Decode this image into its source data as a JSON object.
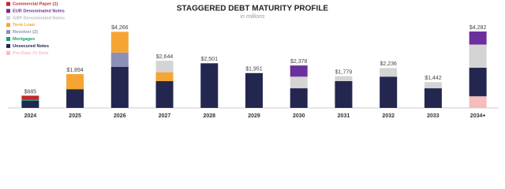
{
  "chart_data": {
    "type": "stacked-bar",
    "title": "STAGGERED DEBT MATURITY PROFILE",
    "subtitle": "in millions",
    "categories": [
      "2024",
      "2025",
      "2026",
      "2027",
      "2028",
      "2029",
      "2030",
      "2031",
      "2032",
      "2033",
      "2034+"
    ],
    "series": [
      {
        "name": "Pro Rata JV Debt",
        "color": "#f7bcbc",
        "values": [
          null,
          null,
          null,
          null,
          null,
          null,
          null,
          null,
          null,
          null,
          650
        ]
      },
      {
        "name": "Unsecured Notes",
        "color": "#23264f",
        "values": [
          400,
          1050,
          2300,
          1500,
          2501,
          1951,
          1100,
          1500,
          1750,
          1100,
          1600
        ]
      },
      {
        "name": "Mortgages",
        "color": "#1a9e6a",
        "values": [
          50,
          null,
          null,
          null,
          null,
          null,
          null,
          null,
          null,
          null,
          null
        ]
      },
      {
        "name": "Revolver (2)",
        "color": "#8c90b6",
        "values": [
          null,
          null,
          800,
          null,
          null,
          null,
          null,
          null,
          null,
          null,
          null
        ]
      },
      {
        "name": "Term Loan",
        "color": "#f5a533",
        "values": [
          null,
          844,
          1166,
          500,
          null,
          null,
          null,
          null,
          null,
          null,
          null
        ]
      },
      {
        "name": "GBP Denominated Notes",
        "color": "#d4d4d4",
        "values": [
          null,
          null,
          null,
          644,
          null,
          null,
          650,
          279,
          486,
          342,
          1300
        ]
      },
      {
        "name": "EUR Denominated Notes",
        "color": "#6c2f9e",
        "values": [
          null,
          null,
          null,
          null,
          null,
          null,
          628,
          null,
          null,
          null,
          732
        ]
      },
      {
        "name": "Commercial Paper (1)",
        "color": "#c3262c",
        "values": [
          235,
          null,
          null,
          null,
          null,
          null,
          null,
          null,
          null,
          null,
          null
        ]
      }
    ],
    "totals": [
      {
        "value": 685,
        "label": "$685"
      },
      {
        "value": 1894,
        "label": "$1,894"
      },
      {
        "value": 4266,
        "label": "$4,266"
      },
      {
        "value": 2644,
        "label": "$2,644"
      },
      {
        "value": 2501,
        "label": "$2,501"
      },
      {
        "value": 1951,
        "label": "$1,951"
      },
      {
        "value": 2378,
        "label": "$2,378"
      },
      {
        "value": 1779,
        "label": "$1,779"
      },
      {
        "value": 2236,
        "label": "$2,236"
      },
      {
        "value": 1442,
        "label": "$1,442"
      },
      {
        "value": 4282,
        "label": "$4,282"
      }
    ]
  }
}
